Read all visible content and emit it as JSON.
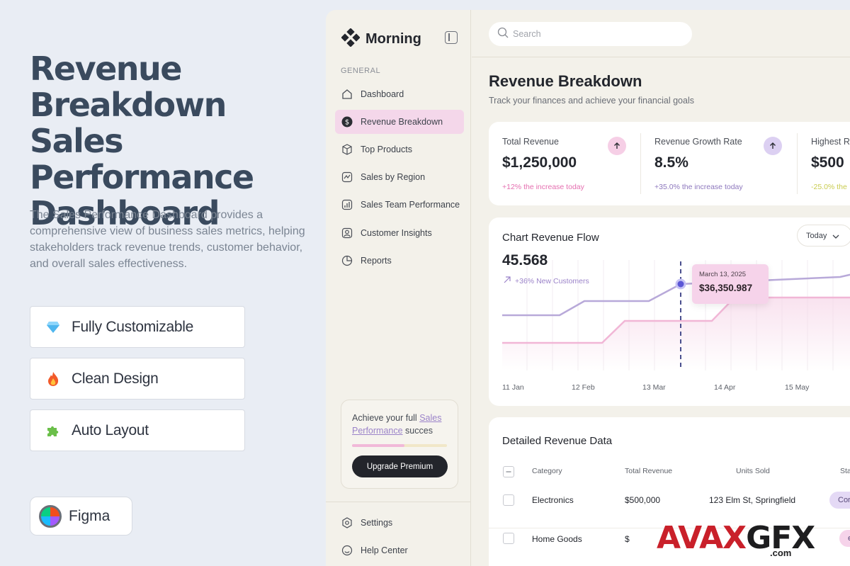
{
  "promo": {
    "title": "Revenue Breakdown Sales Performance Dashboard",
    "description": "The Sales Performance Dashboard provides a comprehensive view of business sales metrics, helping stakeholders track revenue trends, customer behavior, and overall sales effectiveness.",
    "features": [
      {
        "label": "Fully Customizable",
        "icon": "diamond-icon"
      },
      {
        "label": "Clean Design",
        "icon": "fire-icon"
      },
      {
        "label": "Auto Layout",
        "icon": "puzzle-icon"
      }
    ],
    "tool": {
      "label": "Figma",
      "icon": "figma-logo"
    }
  },
  "sidebar": {
    "brand": "Morning",
    "section_label": "GENERAL",
    "items": [
      {
        "label": "Dashboard",
        "icon": "home-icon"
      },
      {
        "label": "Revenue Breakdown",
        "icon": "dollar-icon",
        "active": true
      },
      {
        "label": "Top Products",
        "icon": "box-icon"
      },
      {
        "label": "Sales by Region",
        "icon": "region-icon"
      },
      {
        "label": "Sales Team Performance",
        "icon": "chart-icon"
      },
      {
        "label": "Customer Insights",
        "icon": "user-icon"
      },
      {
        "label": "Reports",
        "icon": "pie-icon"
      }
    ],
    "upgrade_card": {
      "text_before": "Achieve your full ",
      "text_highlight": "Sales Performance",
      "text_after": " succes",
      "progress": 0.55,
      "button": "Upgrade Premium"
    },
    "footer_items": [
      {
        "label": "Settings",
        "icon": "settings-icon"
      },
      {
        "label": "Help Center",
        "icon": "help-icon"
      }
    ]
  },
  "search": {
    "placeholder": "Search"
  },
  "header": {
    "title": "Revenue Breakdown",
    "subtitle": "Track your finances and achieve your financial goals"
  },
  "stats": [
    {
      "label": "Total Revenue",
      "value": "$1,250,000",
      "change": "+12% the increase today",
      "color": "#e56fb0",
      "arrow_bg": "#f6cfe6"
    },
    {
      "label": "Revenue Growth Rate",
      "value": "8.5%",
      "change": "+35.0% the increase today",
      "color": "#8d77bd",
      "arrow_bg": "#dcd0f2"
    },
    {
      "label": "Highest R",
      "value": "$500",
      "change": "-25.0% the",
      "color": "#c9cc4f",
      "arrow_bg": "#f3f0c9"
    }
  ],
  "chart": {
    "title": "Chart Revenue Flow",
    "filter": "Today",
    "big_value": "45.568",
    "sub": "+36% New Customers",
    "tooltip": {
      "date": "March 13, 2025",
      "value": "$36,350.987"
    },
    "x_ticks": [
      "11 Jan",
      "12 Feb",
      "13 Mar",
      "14 Apr",
      "15 May"
    ]
  },
  "chart_data": {
    "type": "line",
    "categories": [
      "11 Jan",
      "12 Feb",
      "13 Mar",
      "14 Apr",
      "15 May"
    ],
    "series": [],
    "highlight": {
      "x": "13 Mar",
      "date": "March 13, 2025",
      "value": "$36,350.987"
    },
    "colors": [
      "#b8a9d9",
      "#f1b6d6"
    ]
  },
  "table": {
    "title": "Detailed Revenue Data",
    "columns": [
      "Category",
      "Total Revenue",
      "Units Sold",
      "Sta"
    ],
    "rows": [
      {
        "category": "Electronics",
        "total": "$500,000",
        "units": "123 Elm St, Springfield",
        "status": "Cor"
      },
      {
        "category": "Home Goods",
        "total": "$",
        "units": "",
        "status": "e"
      }
    ]
  },
  "watermark": {
    "brand": "AVAXGFX",
    "suffix": ".com"
  }
}
